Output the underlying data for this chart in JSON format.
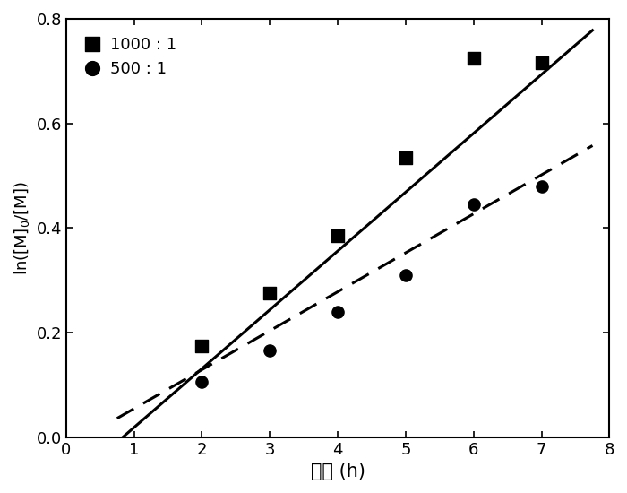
{
  "series1_label": "1000 : 1",
  "series2_label": "500 : 1",
  "series1_x": [
    2,
    3,
    4,
    5,
    6,
    7
  ],
  "series1_y": [
    0.175,
    0.275,
    0.385,
    0.535,
    0.725,
    0.715
  ],
  "series2_x": [
    2,
    3,
    4,
    5,
    6,
    7
  ],
  "series2_y": [
    0.105,
    0.165,
    0.24,
    0.31,
    0.445,
    0.48
  ],
  "line1_x_start": 0.75,
  "line1_x_end": 7.75,
  "line1_slope": 0.1125,
  "line1_intercept": -0.094,
  "line2_x_start": 0.75,
  "line2_x_end": 7.75,
  "line2_slope": 0.0745,
  "line2_intercept": -0.02,
  "xlabel": "时间 (h)",
  "ylabel": "ln([M]$_0$/[M])",
  "xlim": [
    0,
    8
  ],
  "ylim": [
    0.0,
    0.8
  ],
  "xticks": [
    0,
    1,
    2,
    3,
    4,
    5,
    6,
    7,
    8
  ],
  "yticks": [
    0.0,
    0.2,
    0.4,
    0.6,
    0.8
  ],
  "background_color": "#ffffff",
  "line_color": "#000000",
  "marker_color": "#000000"
}
